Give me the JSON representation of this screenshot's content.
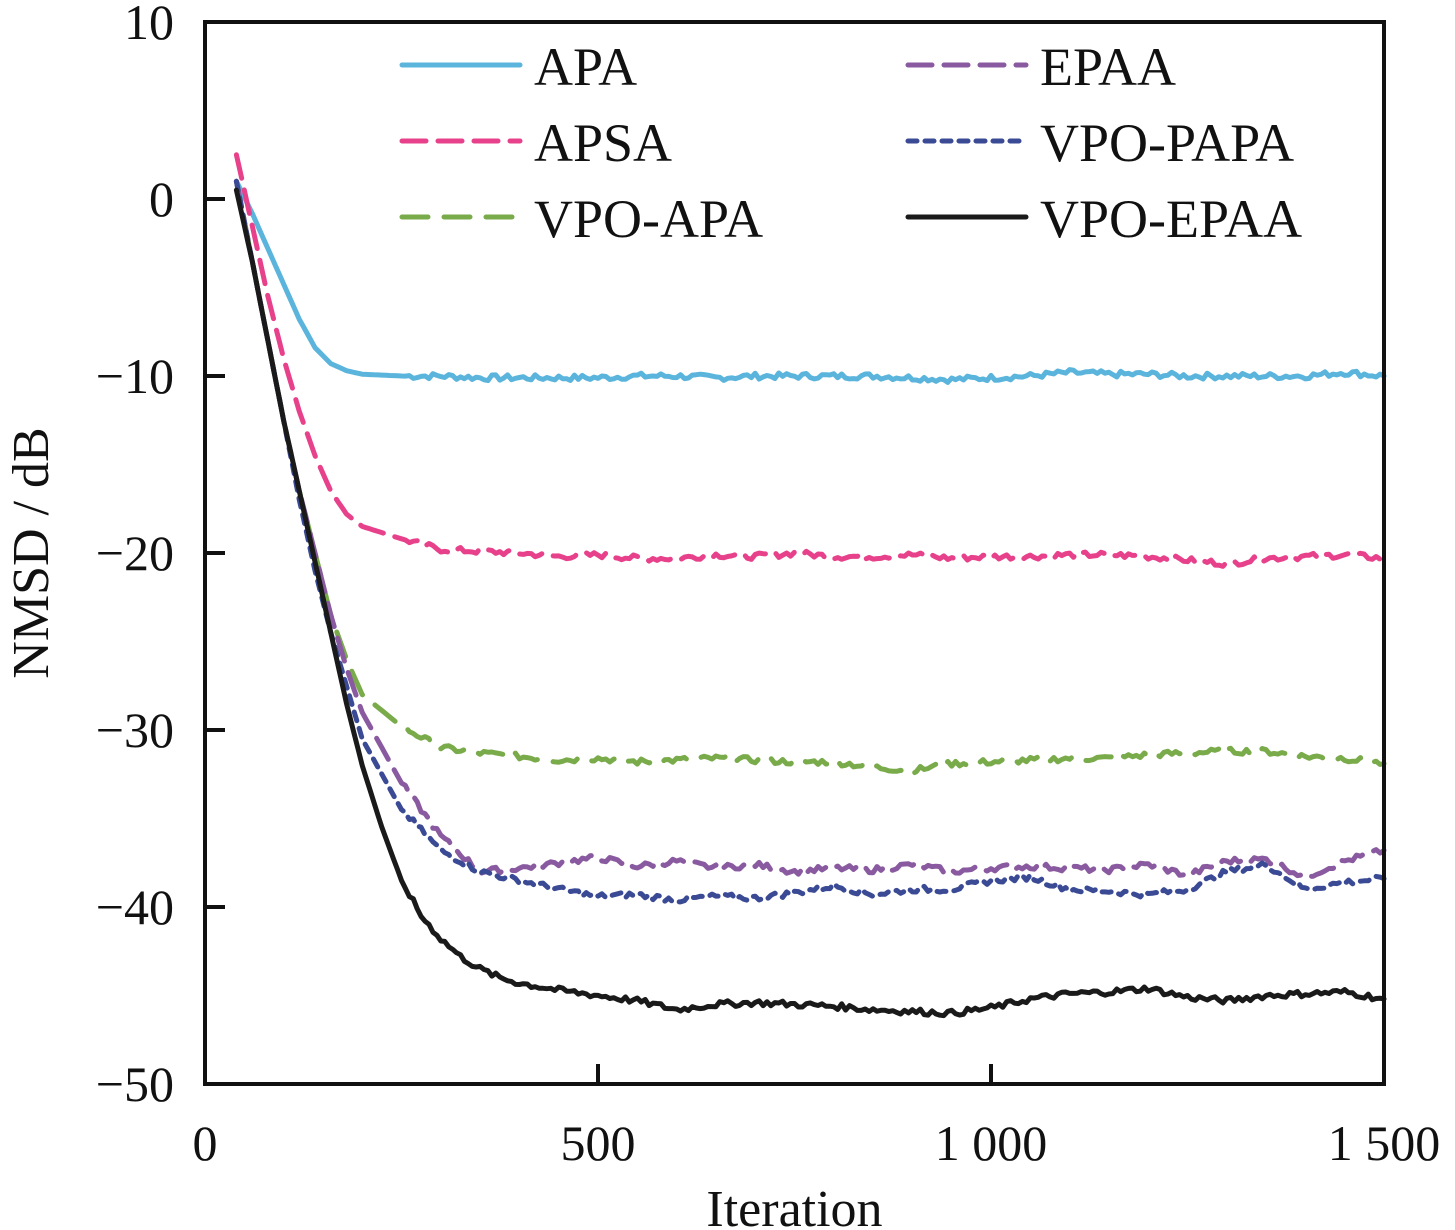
{
  "chart_data": {
    "type": "line",
    "title": "",
    "xlabel": "Iteration",
    "ylabel": "NMSD / dB",
    "xlim": [
      0,
      1500
    ],
    "ylim": [
      -50,
      10
    ],
    "xticks": [
      0,
      500,
      1000,
      1500
    ],
    "xtick_labels": [
      "0",
      "500",
      "1 000",
      "1 500"
    ],
    "yticks": [
      10,
      0,
      -10,
      -20,
      -30,
      -40,
      -50
    ],
    "ytick_labels": [
      "10",
      "0",
      "−10",
      "−20",
      "−30",
      "−40",
      "−50"
    ],
    "grid": false,
    "legend_position": "top",
    "series": [
      {
        "name": "APA",
        "color": "#5ab4dc",
        "style": "solid",
        "x": [
          40,
          60,
          80,
          100,
          120,
          140,
          160,
          180,
          200,
          250,
          300,
          350,
          400,
          450,
          500,
          550,
          600,
          650,
          700,
          750,
          800,
          850,
          900,
          950,
          1000,
          1050,
          1100,
          1150,
          1200,
          1250,
          1300,
          1350,
          1400,
          1450,
          1500
        ],
        "y": [
          1.0,
          -0.8,
          -2.8,
          -4.8,
          -6.8,
          -8.4,
          -9.3,
          -9.7,
          -9.9,
          -10.0,
          -10.0,
          -10.1,
          -10.1,
          -10.1,
          -10.1,
          -10.0,
          -10.0,
          -10.1,
          -10.0,
          -10.0,
          -10.0,
          -10.0,
          -10.1,
          -10.2,
          -10.1,
          -10.0,
          -9.8,
          -9.9,
          -9.9,
          -10.0,
          -10.0,
          -10.0,
          -10.0,
          -9.8,
          -10.0
        ]
      },
      {
        "name": "APSA",
        "color": "#e8418b",
        "style": "dashed",
        "x": [
          40,
          60,
          80,
          100,
          120,
          140,
          160,
          180,
          200,
          250,
          300,
          350,
          400,
          450,
          500,
          550,
          600,
          650,
          700,
          750,
          800,
          850,
          900,
          950,
          1000,
          1050,
          1100,
          1150,
          1200,
          1250,
          1300,
          1350,
          1400,
          1450,
          1500
        ],
        "y": [
          2.5,
          -1.5,
          -5.5,
          -9.0,
          -12.0,
          -14.5,
          -16.5,
          -17.8,
          -18.5,
          -19.2,
          -19.8,
          -19.9,
          -20.0,
          -20.2,
          -20.1,
          -20.3,
          -20.3,
          -20.1,
          -20.2,
          -20.0,
          -20.2,
          -20.2,
          -20.1,
          -20.3,
          -20.2,
          -20.2,
          -20.1,
          -20.1,
          -20.2,
          -20.4,
          -20.6,
          -20.3,
          -20.2,
          -20.1,
          -20.3
        ]
      },
      {
        "name": "VPO-APA",
        "color": "#7aab4b",
        "style": "longdash",
        "x": [
          40,
          60,
          80,
          100,
          120,
          140,
          160,
          180,
          200,
          250,
          300,
          350,
          400,
          450,
          500,
          550,
          600,
          650,
          700,
          750,
          800,
          850,
          900,
          950,
          1000,
          1050,
          1100,
          1150,
          1200,
          1250,
          1300,
          1350,
          1400,
          1450,
          1500
        ],
        "y": [
          1.0,
          -3.5,
          -8.0,
          -12.5,
          -16.5,
          -20.0,
          -23.5,
          -26.0,
          -28.0,
          -29.8,
          -31.0,
          -31.3,
          -31.5,
          -31.7,
          -31.6,
          -31.8,
          -31.7,
          -31.6,
          -31.7,
          -31.8,
          -31.8,
          -32.1,
          -32.3,
          -31.9,
          -31.8,
          -31.7,
          -31.6,
          -31.6,
          -31.4,
          -31.3,
          -31.2,
          -31.2,
          -31.5,
          -31.6,
          -31.9
        ]
      },
      {
        "name": "EPAA",
        "color": "#8a5aa0",
        "style": "dashed",
        "x": [
          40,
          60,
          80,
          100,
          120,
          140,
          160,
          180,
          200,
          250,
          300,
          350,
          400,
          450,
          500,
          550,
          600,
          650,
          700,
          750,
          800,
          850,
          900,
          950,
          1000,
          1050,
          1100,
          1150,
          1200,
          1250,
          1300,
          1350,
          1400,
          1450,
          1500
        ],
        "y": [
          1.0,
          -3.5,
          -8.0,
          -12.5,
          -16.5,
          -20.0,
          -23.5,
          -26.5,
          -29.0,
          -33.0,
          -36.0,
          -38.0,
          -37.8,
          -37.5,
          -37.2,
          -37.7,
          -37.4,
          -37.8,
          -37.6,
          -38.0,
          -37.8,
          -37.9,
          -37.6,
          -38.0,
          -37.8,
          -37.7,
          -37.8,
          -37.9,
          -37.6,
          -38.2,
          -37.4,
          -37.3,
          -38.3,
          -37.4,
          -36.8
        ]
      },
      {
        "name": "VPO-PAPA",
        "color": "#3a4a94",
        "style": "dotted",
        "x": [
          40,
          60,
          80,
          100,
          120,
          140,
          160,
          180,
          200,
          250,
          300,
          350,
          400,
          450,
          500,
          550,
          600,
          650,
          700,
          750,
          800,
          850,
          900,
          950,
          1000,
          1050,
          1100,
          1150,
          1200,
          1250,
          1300,
          1350,
          1400,
          1450,
          1500
        ],
        "y": [
          1.0,
          -3.5,
          -8.0,
          -12.5,
          -17.0,
          -21.0,
          -24.5,
          -27.5,
          -30.5,
          -34.5,
          -36.8,
          -38.0,
          -38.5,
          -39.0,
          -39.4,
          -39.3,
          -39.6,
          -39.4,
          -39.5,
          -39.2,
          -38.8,
          -39.3,
          -39.0,
          -39.0,
          -38.5,
          -38.3,
          -39.0,
          -39.1,
          -39.3,
          -39.0,
          -38.0,
          -37.6,
          -39.0,
          -38.6,
          -38.4
        ]
      },
      {
        "name": "VPO-EPAA",
        "color": "#1a1a1a",
        "style": "solid",
        "x": [
          40,
          60,
          80,
          100,
          120,
          140,
          160,
          180,
          200,
          225,
          250,
          275,
          300,
          325,
          350,
          375,
          400,
          425,
          450,
          500,
          550,
          600,
          650,
          700,
          750,
          800,
          850,
          900,
          950,
          1000,
          1050,
          1100,
          1150,
          1200,
          1250,
          1300,
          1350,
          1400,
          1450,
          1500
        ],
        "y": [
          0.5,
          -3.5,
          -8.0,
          -12.5,
          -16.5,
          -20.5,
          -24.5,
          -28.5,
          -32.0,
          -35.5,
          -38.5,
          -40.5,
          -41.8,
          -42.8,
          -43.5,
          -44.0,
          -44.3,
          -44.5,
          -44.7,
          -45.0,
          -45.3,
          -45.8,
          -45.5,
          -45.4,
          -45.5,
          -45.6,
          -45.8,
          -45.9,
          -46.0,
          -45.7,
          -45.2,
          -44.9,
          -44.8,
          -44.6,
          -45.1,
          -45.3,
          -45.0,
          -44.9,
          -44.8,
          -45.2
        ]
      }
    ]
  }
}
